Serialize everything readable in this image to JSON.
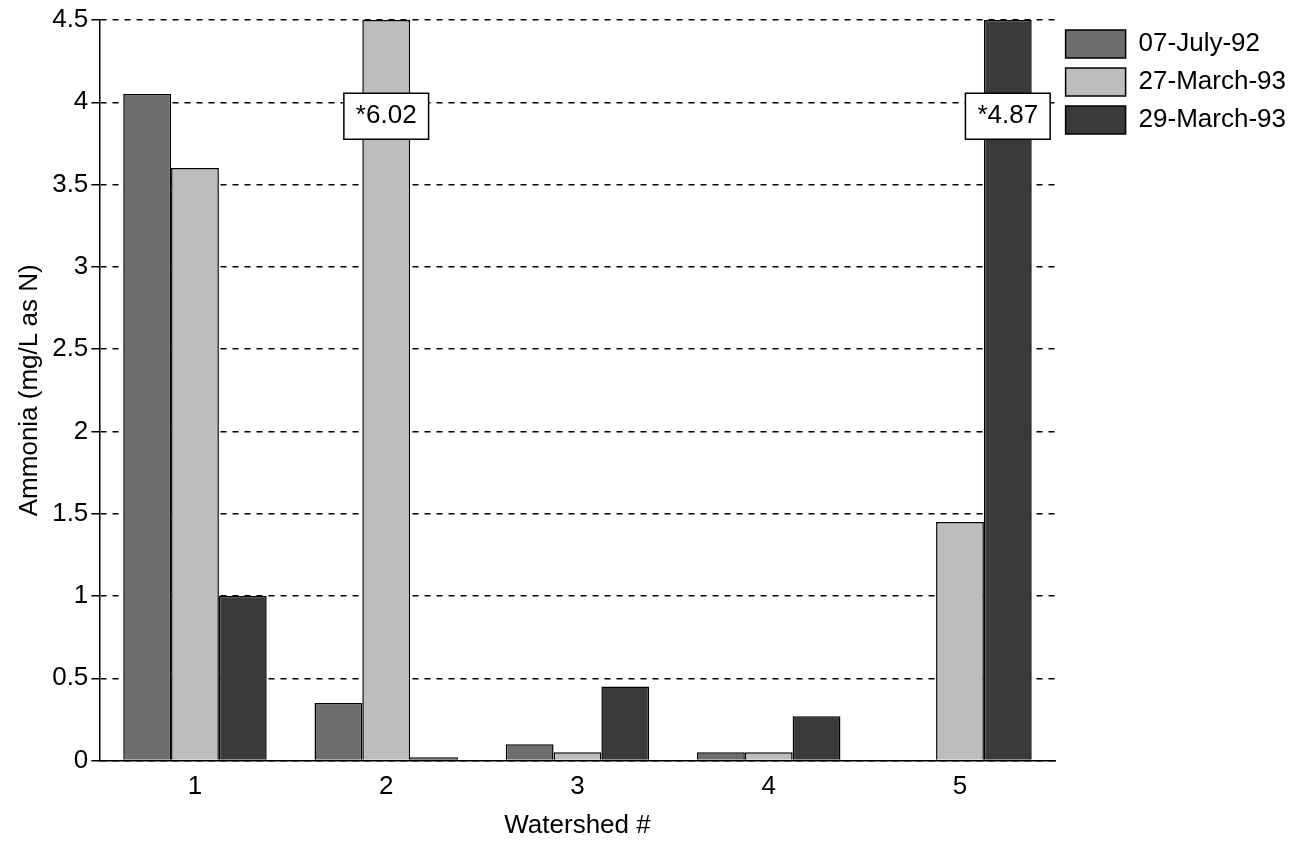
{
  "chart_data": {
    "type": "bar",
    "xlabel": "Watershed #",
    "ylabel": "Ammonia (mg/L as N)",
    "categories": [
      "1",
      "2",
      "3",
      "4",
      "5"
    ],
    "series": [
      {
        "name": "07-July-92",
        "color": "#6e6e6e",
        "values": [
          4.05,
          0.35,
          0.1,
          0.05,
          null
        ]
      },
      {
        "name": "27-March-93",
        "color": "#bdbdbd",
        "values": [
          3.6,
          4.5,
          0.05,
          0.05,
          1.45
        ]
      },
      {
        "name": "29-March-93",
        "color": "#3a3a3a",
        "values": [
          1.0,
          0.02,
          0.45,
          0.27,
          4.5
        ]
      }
    ],
    "ylim": [
      0,
      4.5
    ],
    "yticks": [
      0,
      0.5,
      1,
      1.5,
      2,
      2.5,
      3,
      3.5,
      4,
      4.5
    ],
    "grid": "y",
    "legend": "top right",
    "annotations": [
      "*6.02",
      "*4.87"
    ]
  }
}
